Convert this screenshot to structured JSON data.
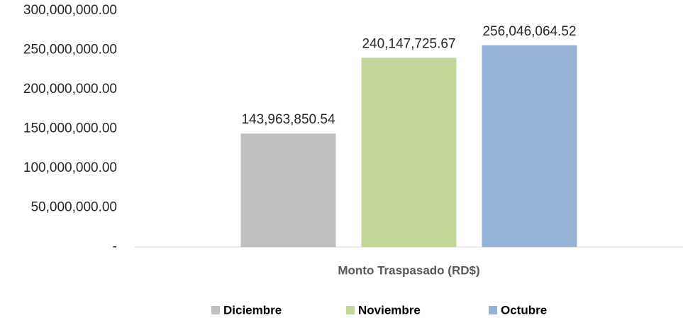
{
  "chart_data": {
    "type": "bar",
    "categories": [
      "Monto Traspasado (RD$)"
    ],
    "series": [
      {
        "name": "Diciembre",
        "color": "#bfbfbf",
        "values": [
          143963850.54
        ],
        "value_labels": [
          "143,963,850.54"
        ]
      },
      {
        "name": "Noviembre",
        "color": "#c4d79b",
        "values": [
          240147725.67
        ],
        "value_labels": [
          "240,147,725.67"
        ]
      },
      {
        "name": "Octubre",
        "color": "#95b3d7",
        "values": [
          256046064.52
        ],
        "value_labels": [
          "256,046,064.52"
        ]
      }
    ],
    "ylim": [
      0,
      300000000
    ],
    "yticks": [
      {
        "value": 0,
        "label": "-"
      },
      {
        "value": 50000000,
        "label": "50,000,000.00"
      },
      {
        "value": 100000000,
        "label": "100,000,000.00"
      },
      {
        "value": 150000000,
        "label": "150,000,000.00"
      },
      {
        "value": 200000000,
        "label": "200,000,000.00"
      },
      {
        "value": 250000000,
        "label": "250,000,000.00"
      },
      {
        "value": 300000000,
        "label": "300,000,000.00"
      }
    ],
    "grid": false,
    "legend": "bottom"
  }
}
